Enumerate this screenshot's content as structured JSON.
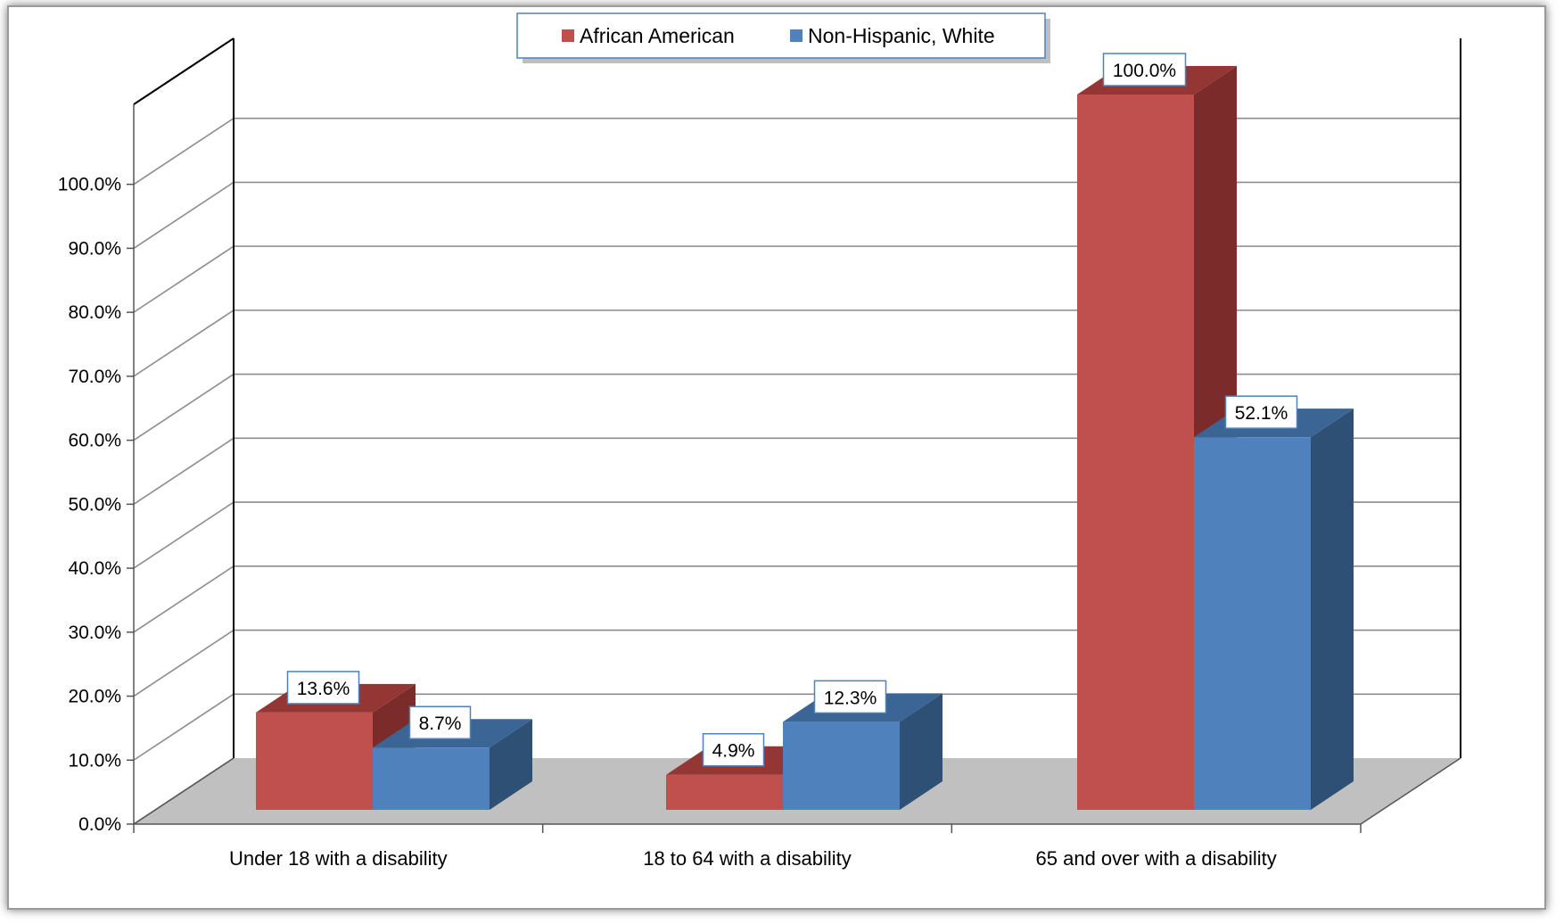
{
  "chart_data": {
    "type": "bar",
    "title": "",
    "xlabel": "",
    "ylabel": "",
    "categories": [
      "Under 18 with a disability",
      "18 to 64 with a disability",
      "65 and over with a disability"
    ],
    "series": [
      {
        "name": "African American",
        "values": [
          13.6,
          4.9,
          100.0
        ],
        "labels": [
          "13.6%",
          "4.9%",
          "100.0%"
        ],
        "color": "#C0504D",
        "side_color": "#7B2C2A",
        "top_color": "#943634"
      },
      {
        "name": "Non-Hispanic, White",
        "values": [
          8.7,
          12.3,
          52.1
        ],
        "labels": [
          "8.7%",
          "12.3%",
          "52.1%"
        ],
        "color": "#4F81BD",
        "side_color": "#2F5075",
        "top_color": "#3B6594"
      }
    ],
    "ylim": [
      0,
      100
    ],
    "yticks": [
      0,
      10,
      20,
      30,
      40,
      50,
      60,
      70,
      80,
      90,
      100
    ],
    "ytick_labels": [
      "0.0%",
      "10.0%",
      "20.0%",
      "30.0%",
      "40.0%",
      "50.0%",
      "60.0%",
      "70.0%",
      "80.0%",
      "90.0%",
      "100.0%"
    ],
    "grid": true,
    "legend_position": "top-center",
    "floor_color": "#C0C0C0",
    "projection": "3d"
  }
}
